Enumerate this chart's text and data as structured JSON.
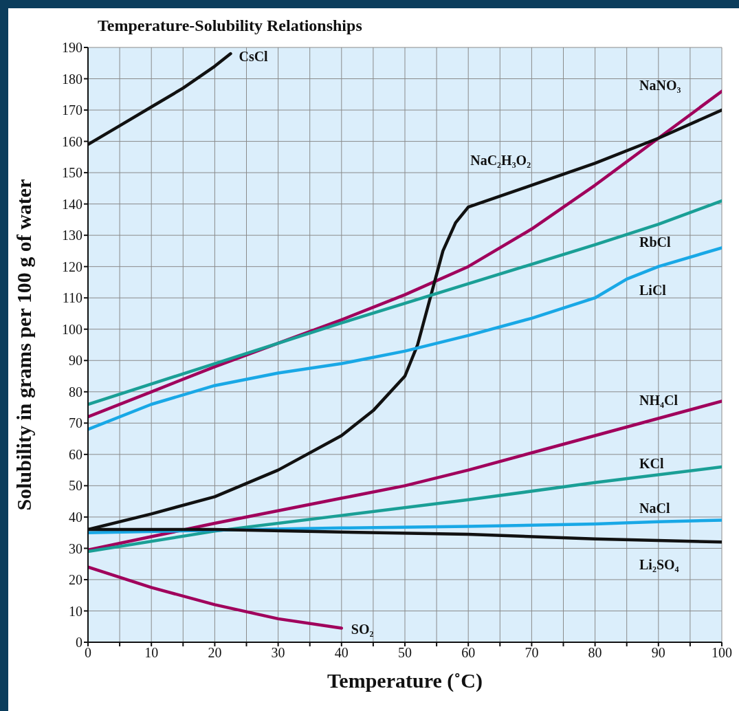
{
  "chart_data": {
    "type": "line",
    "title": "Temperature-Solubility Relationships",
    "xlabel": "Temperature (˚C)",
    "ylabel": "Solubility in grams per 100 g of water",
    "xlim": [
      0,
      100
    ],
    "xticks": [
      0,
      {
        "value": 5,
        "label": null
      },
      10,
      {
        "value": 15,
        "label": null
      },
      20,
      {
        "value": 25,
        "label": null
      },
      30,
      {
        "value": 35,
        "label": null
      },
      40,
      {
        "value": 45,
        "label": null
      },
      50,
      {
        "value": 55,
        "label": null
      },
      60,
      {
        "value": 65,
        "label": null
      },
      70,
      {
        "value": 75,
        "label": null
      },
      80,
      {
        "value": 85,
        "label": null
      },
      90,
      {
        "value": 95,
        "label": null
      },
      100
    ],
    "ylim": [
      0,
      190
    ],
    "yticks": [
      0,
      10,
      20,
      30,
      40,
      50,
      60,
      70,
      80,
      90,
      100,
      110,
      120,
      130,
      140,
      150,
      160,
      170,
      180,
      190
    ],
    "grid": true,
    "legend": false,
    "marker": "none",
    "line_style": "solid",
    "series": [
      {
        "name": "CsCl",
        "color": "#111111",
        "x": [
          0,
          5,
          10,
          15,
          20,
          22.5
        ],
        "values": [
          159,
          165,
          171,
          177,
          184,
          188
        ]
      },
      {
        "name": "NaNO₃",
        "color": "#a0005c",
        "x": [
          0,
          10,
          20,
          30,
          40,
          50,
          60,
          70,
          80,
          90,
          100
        ],
        "values": [
          72,
          80,
          88,
          95.5,
          103,
          111,
          120,
          132,
          146,
          161,
          176
        ]
      },
      {
        "name": "NaC₂H₃O₂",
        "color": "#111111",
        "x": [
          0,
          10,
          20,
          30,
          40,
          45,
          50,
          52,
          54,
          56,
          58,
          60,
          70,
          80,
          90,
          100
        ],
        "values": [
          36,
          41,
          46.5,
          55,
          66,
          74,
          85,
          95,
          110,
          125,
          134,
          139,
          146,
          153,
          161,
          170
        ]
      },
      {
        "name": "RbCl",
        "color": "#1a9f96",
        "x": [
          0,
          20,
          40,
          60,
          80,
          90,
          100
        ],
        "values": [
          76,
          89,
          102,
          114.5,
          127,
          133.5,
          141
        ]
      },
      {
        "name": "LiCl",
        "color": "#19a8e6",
        "x": [
          0,
          10,
          20,
          30,
          40,
          50,
          60,
          70,
          80,
          85,
          90,
          100
        ],
        "values": [
          68,
          76,
          82,
          86,
          89,
          93,
          98,
          103.5,
          110,
          116,
          120,
          126
        ]
      },
      {
        "name": "NH₄Cl",
        "color": "#a0005c",
        "x": [
          0,
          20,
          40,
          50,
          60,
          80,
          100
        ],
        "values": [
          29.5,
          38,
          46,
          50,
          55,
          66,
          77
        ]
      },
      {
        "name": "KCl",
        "color": "#1a9f96",
        "x": [
          0,
          20,
          40,
          60,
          80,
          100
        ],
        "values": [
          29,
          35.5,
          40.5,
          45.5,
          51,
          56
        ]
      },
      {
        "name": "NaCl",
        "color": "#19a8e6",
        "x": [
          0,
          20,
          40,
          60,
          80,
          90,
          100
        ],
        "values": [
          35,
          35.8,
          36.5,
          37,
          37.8,
          38.5,
          39
        ]
      },
      {
        "name": "Li₂SO₄",
        "color": "#111111",
        "x": [
          0,
          20,
          40,
          60,
          80,
          100
        ],
        "values": [
          36,
          36,
          35.2,
          34.5,
          33,
          32
        ]
      },
      {
        "name": "SO₂",
        "color": "#a0005c",
        "x": [
          0,
          10,
          20,
          30,
          40
        ],
        "values": [
          24,
          17.5,
          12,
          7.5,
          4.5
        ]
      }
    ]
  }
}
